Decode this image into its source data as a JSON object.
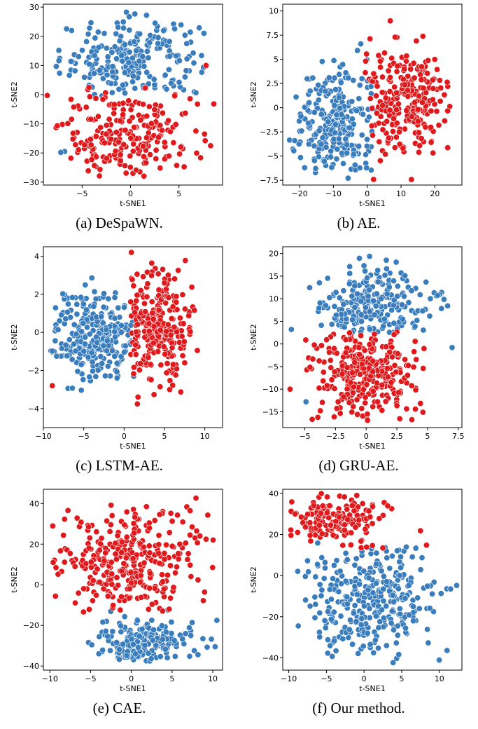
{
  "colors": {
    "benign": "#3a7dbd",
    "anomalous": "#e0191c"
  },
  "chart_data": [
    {
      "id": "a",
      "type": "scatter",
      "caption": "(a) DeSpaWN.",
      "xlabel": "t-SNE1",
      "ylabel": "t-SNE2",
      "xlim": [
        -9,
        9.5
      ],
      "ylim": [
        -31,
        31
      ],
      "xticks": [
        -5,
        0,
        5
      ],
      "yticks": [
        -30,
        -20,
        -10,
        0,
        10,
        20,
        30
      ],
      "blue": {
        "cx": 0,
        "cy": 12,
        "sx": 3.6,
        "sy": 7,
        "n": 230,
        "ymin": -1,
        "ymax": 30,
        "xmin": -8,
        "xmax": 8.5
      },
      "red": {
        "cx": 0,
        "cy": -14,
        "sx": 3.6,
        "sy": 8,
        "n": 230,
        "ymin": -28,
        "ymax": 3,
        "xmin": -8.5,
        "xmax": 8.5
      },
      "extra_blue": [
        [
          -6.8,
          -19.5
        ],
        [
          -7.2,
          -19.8
        ]
      ],
      "extra_red": [
        [
          -8.6,
          -0.3
        ],
        [
          8.6,
          -3.2
        ],
        [
          7.8,
          10
        ]
      ]
    },
    {
      "id": "b",
      "type": "scatter",
      "caption": "(b) AE.",
      "xlabel": "t-SNE1",
      "ylabel": "t-SNE2",
      "xlim": [
        -25,
        28
      ],
      "ylim": [
        -8,
        10.7
      ],
      "xticks": [
        -20,
        -10,
        0,
        10,
        20
      ],
      "yticks": [
        -7.5,
        -5.0,
        -2.5,
        0.0,
        2.5,
        5.0,
        7.5,
        10.0
      ],
      "blue": {
        "cx": -10,
        "cy": -1.5,
        "sx": 6.5,
        "sy": 3,
        "n": 260,
        "ymin": -7.5,
        "ymax": 9.5,
        "xmin": -23,
        "xmax": 3
      },
      "red": {
        "cx": 10,
        "cy": 0.8,
        "sx": 7,
        "sy": 2.6,
        "n": 260,
        "ymin": -7.5,
        "ymax": 10.3,
        "xmin": -1,
        "xmax": 26.5
      },
      "extra_blue": [],
      "extra_red": []
    },
    {
      "id": "c",
      "type": "scatter",
      "caption": "(c) LSTM-AE.",
      "xlabel": "t-SNE1",
      "ylabel": "t-SNE2",
      "xlim": [
        -10,
        12.2
      ],
      "ylim": [
        -5,
        4.5
      ],
      "xticks": [
        -10,
        -5,
        0,
        5,
        10
      ],
      "yticks": [
        -4,
        -2,
        0,
        2,
        4
      ],
      "blue": {
        "cx": -3.5,
        "cy": -0.3,
        "sx": 2.8,
        "sy": 1.2,
        "n": 280,
        "ymin": -4,
        "ymax": 3.8,
        "xmin": -9.3,
        "xmax": 1.2
      },
      "red": {
        "cx": 3.6,
        "cy": 0.3,
        "sx": 2.2,
        "sy": 1.5,
        "n": 280,
        "ymin": -4.5,
        "ymax": 4.2,
        "xmin": 0.8,
        "xmax": 11.2
      },
      "extra_blue": [],
      "extra_red": [
        [
          -8.9,
          -2.8
        ],
        [
          0.9,
          4.2
        ]
      ]
    },
    {
      "id": "d",
      "type": "scatter",
      "caption": "(d) GRU-AE.",
      "xlabel": "t-SNE1",
      "ylabel": "t-SNE2",
      "xlim": [
        -6.8,
        7.8
      ],
      "ylim": [
        -18.5,
        21.5
      ],
      "xticks": [
        -5.0,
        -2.5,
        0.0,
        2.5,
        5.0,
        7.5
      ],
      "yticks": [
        -15,
        -10,
        -5,
        0,
        5,
        10,
        15,
        20
      ],
      "blue": {
        "cx": 0.5,
        "cy": 8,
        "sx": 2.2,
        "sy": 4.5,
        "n": 250,
        "ymin": 2.5,
        "ymax": 20,
        "xmin": -6.2,
        "xmax": 7
      },
      "red": {
        "cx": 0,
        "cy": -7,
        "sx": 2,
        "sy": 5,
        "n": 300,
        "ymin": -17.5,
        "ymax": 3,
        "xmin": -6.2,
        "xmax": 6.8
      },
      "extra_blue": [
        [
          -6.1,
          3.2
        ],
        [
          7.0,
          -0.8
        ],
        [
          -4.9,
          -12.8
        ]
      ],
      "extra_red": [
        [
          -6.2,
          -10
        ]
      ]
    },
    {
      "id": "e",
      "type": "scatter",
      "caption": "(e) CAE.",
      "xlabel": "t-SNE1",
      "ylabel": "t-SNE2",
      "xlim": [
        -10.8,
        11.2
      ],
      "ylim": [
        -42,
        47
      ],
      "xticks": [
        -10,
        -5,
        0,
        5,
        10
      ],
      "yticks": [
        -40,
        -20,
        0,
        20,
        40
      ],
      "blue": {
        "cx": 1.5,
        "cy": -28,
        "sx": 3,
        "sy": 6,
        "n": 200,
        "ymin": -38,
        "ymax": -12,
        "xmin": -6,
        "xmax": 10.5
      },
      "red": {
        "cx": -0.5,
        "cy": 12,
        "sx": 4.5,
        "sy": 14,
        "n": 320,
        "ymin": -14,
        "ymax": 44,
        "xmin": -9.8,
        "xmax": 10.3
      },
      "extra_blue": [
        [
          10.5,
          -17.5
        ]
      ],
      "extra_red": [
        [
          -9.6,
          11
        ],
        [
          -9.0,
          5.2
        ]
      ]
    },
    {
      "id": "f",
      "type": "scatter",
      "caption": "(f) Our method.",
      "xlabel": "t-SNE1",
      "ylabel": "t-SNE2",
      "xlim": [
        -10.8,
        13
      ],
      "ylim": [
        -46,
        42
      ],
      "xticks": [
        -10,
        -5,
        0,
        5,
        10
      ],
      "yticks": [
        -40,
        -20,
        0,
        20,
        40
      ],
      "blue": {
        "cx": 0.5,
        "cy": -10,
        "sx": 4.2,
        "sy": 14,
        "n": 330,
        "ymin": -43,
        "ymax": 16,
        "xmin": -9,
        "xmax": 12.5
      },
      "red": {
        "cx": -4,
        "cy": 28,
        "sx": 3,
        "sy": 6,
        "n": 160,
        "ymin": 13,
        "ymax": 40,
        "xmin": -10.2,
        "xmax": 8
      },
      "extra_blue": [
        [
          12.3,
          -4.8
        ],
        [
          11.5,
          -6.5
        ]
      ],
      "extra_red": [
        [
          8.3,
          14.8
        ],
        [
          7.5,
          21.8
        ]
      ]
    }
  ]
}
